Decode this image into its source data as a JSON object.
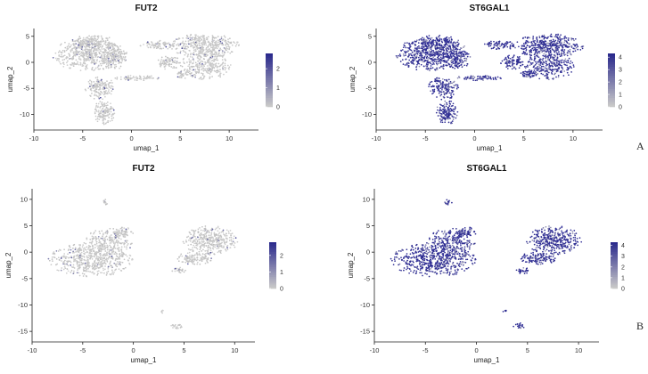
{
  "panel_labels": [
    "A",
    "B"
  ],
  "colors": {
    "low": "#c8c8c8",
    "high": "#2b2a8c",
    "axis": "#222222"
  },
  "chart_data": [
    {
      "id": "A-FUT2",
      "type": "scatter",
      "title": "FUT2",
      "xlabel": "umap_1",
      "ylabel": "umap_2",
      "xlim": [
        -10,
        13
      ],
      "ylim": [
        -13,
        6.5
      ],
      "xticks": [
        -10,
        -5,
        0,
        5,
        10
      ],
      "yticks": [
        -10,
        -5,
        0,
        5
      ],
      "legend": {
        "placement": "right",
        "ticks": [
          0,
          1,
          2
        ],
        "max": 2.8
      },
      "expression_level": "low",
      "clusters": [
        {
          "cx": -4.5,
          "cy": 1.5,
          "rx": 3.6,
          "ry": 3.2,
          "n": 520
        },
        {
          "cx": -4.0,
          "cy": 3.8,
          "rx": 2.5,
          "ry": 1.4,
          "n": 160
        },
        {
          "cx": -1.8,
          "cy": 1.0,
          "rx": 1.4,
          "ry": 2.6,
          "n": 160
        },
        {
          "cx": -3.2,
          "cy": -5.0,
          "rx": 1.6,
          "ry": 2.2,
          "n": 160
        },
        {
          "cx": -2.8,
          "cy": -9.6,
          "rx": 1.1,
          "ry": 2.4,
          "n": 150
        },
        {
          "cx": 0.5,
          "cy": -3.0,
          "rx": 2.4,
          "ry": 0.5,
          "n": 70
        },
        {
          "cx": 2.6,
          "cy": 3.3,
          "rx": 1.8,
          "ry": 0.9,
          "n": 80
        },
        {
          "cx": 7.5,
          "cy": 3.2,
          "rx": 3.6,
          "ry": 2.3,
          "n": 420
        },
        {
          "cx": 7.6,
          "cy": -0.6,
          "rx": 2.6,
          "ry": 2.8,
          "n": 280
        },
        {
          "cx": 3.8,
          "cy": 0.0,
          "rx": 1.2,
          "ry": 1.4,
          "n": 90
        },
        {
          "cx": 5.4,
          "cy": -2.2,
          "rx": 0.9,
          "ry": 0.9,
          "n": 50
        }
      ]
    },
    {
      "id": "A-ST6GAL1",
      "type": "scatter",
      "title": "ST6GAL1",
      "xlabel": "umap_1",
      "ylabel": "umap_2",
      "xlim": [
        -10,
        13
      ],
      "ylim": [
        -13,
        6.5
      ],
      "xticks": [
        -10,
        -5,
        0,
        5,
        10
      ],
      "yticks": [
        -10,
        -5,
        0,
        5
      ],
      "legend": {
        "placement": "right",
        "ticks": [
          0,
          1,
          2,
          3,
          4
        ],
        "max": 4.3
      },
      "expression_level": "high",
      "clusters": [
        {
          "cx": -4.5,
          "cy": 1.5,
          "rx": 3.6,
          "ry": 3.2,
          "n": 520
        },
        {
          "cx": -4.0,
          "cy": 3.8,
          "rx": 2.5,
          "ry": 1.4,
          "n": 160
        },
        {
          "cx": -1.8,
          "cy": 1.0,
          "rx": 1.4,
          "ry": 2.6,
          "n": 160
        },
        {
          "cx": -3.2,
          "cy": -5.0,
          "rx": 1.6,
          "ry": 2.2,
          "n": 160
        },
        {
          "cx": -2.8,
          "cy": -9.6,
          "rx": 1.1,
          "ry": 2.4,
          "n": 150
        },
        {
          "cx": 0.5,
          "cy": -3.0,
          "rx": 2.4,
          "ry": 0.5,
          "n": 70
        },
        {
          "cx": 2.6,
          "cy": 3.3,
          "rx": 1.8,
          "ry": 0.9,
          "n": 80
        },
        {
          "cx": 7.5,
          "cy": 3.2,
          "rx": 3.6,
          "ry": 2.3,
          "n": 420
        },
        {
          "cx": 7.6,
          "cy": -0.6,
          "rx": 2.6,
          "ry": 2.8,
          "n": 280
        },
        {
          "cx": 3.8,
          "cy": 0.0,
          "rx": 1.2,
          "ry": 1.4,
          "n": 90
        },
        {
          "cx": 5.4,
          "cy": -2.2,
          "rx": 0.9,
          "ry": 0.9,
          "n": 50
        }
      ]
    },
    {
      "id": "B-FUT2",
      "type": "scatter",
      "title": "FUT2",
      "xlabel": "umap_1",
      "ylabel": "umap_2",
      "xlim": [
        -10,
        12
      ],
      "ylim": [
        -17,
        12
      ],
      "xticks": [
        -10,
        -5,
        0,
        5,
        10
      ],
      "yticks": [
        -15,
        -10,
        -5,
        0,
        5,
        10
      ],
      "legend": {
        "placement": "right",
        "ticks": [
          0,
          1,
          2
        ],
        "max": 2.8
      },
      "expression_level": "low",
      "clusters": [
        {
          "cx": -4.2,
          "cy": -1.5,
          "rx": 4.2,
          "ry": 3.2,
          "n": 560
        },
        {
          "cx": -2.5,
          "cy": 1.8,
          "rx": 2.4,
          "ry": 2.8,
          "n": 260
        },
        {
          "cx": -1.0,
          "cy": 3.8,
          "rx": 1.0,
          "ry": 1.0,
          "n": 60
        },
        {
          "cx": -2.8,
          "cy": 9.5,
          "rx": 0.4,
          "ry": 0.6,
          "n": 14
        },
        {
          "cx": 7.6,
          "cy": 2.2,
          "rx": 2.8,
          "ry": 2.8,
          "n": 380
        },
        {
          "cx": 6.0,
          "cy": -1.2,
          "rx": 1.8,
          "ry": 1.2,
          "n": 120
        },
        {
          "cx": 4.5,
          "cy": -3.5,
          "rx": 0.7,
          "ry": 0.6,
          "n": 30
        },
        {
          "cx": 4.2,
          "cy": -14.0,
          "rx": 0.6,
          "ry": 0.6,
          "n": 22
        },
        {
          "cx": 2.8,
          "cy": -11.2,
          "rx": 0.2,
          "ry": 0.4,
          "n": 6
        }
      ]
    },
    {
      "id": "B-ST6GAL1",
      "type": "scatter",
      "title": "ST6GAL1",
      "xlabel": "umap_1",
      "ylabel": "umap_2",
      "xlim": [
        -10,
        12
      ],
      "ylim": [
        -17,
        12
      ],
      "xticks": [
        -10,
        -5,
        0,
        5,
        10
      ],
      "yticks": [
        -15,
        -10,
        -5,
        0,
        5,
        10
      ],
      "legend": {
        "placement": "right",
        "ticks": [
          0,
          1,
          2,
          3,
          4
        ],
        "max": 4.3
      },
      "expression_level": "high",
      "clusters": [
        {
          "cx": -4.2,
          "cy": -1.5,
          "rx": 4.2,
          "ry": 3.2,
          "n": 560
        },
        {
          "cx": -2.5,
          "cy": 1.8,
          "rx": 2.4,
          "ry": 2.8,
          "n": 260
        },
        {
          "cx": -1.0,
          "cy": 3.8,
          "rx": 1.0,
          "ry": 1.0,
          "n": 60
        },
        {
          "cx": -2.8,
          "cy": 9.5,
          "rx": 0.4,
          "ry": 0.6,
          "n": 14
        },
        {
          "cx": 7.6,
          "cy": 2.2,
          "rx": 2.8,
          "ry": 2.8,
          "n": 380
        },
        {
          "cx": 6.0,
          "cy": -1.2,
          "rx": 1.8,
          "ry": 1.2,
          "n": 120
        },
        {
          "cx": 4.5,
          "cy": -3.5,
          "rx": 0.7,
          "ry": 0.6,
          "n": 30
        },
        {
          "cx": 4.2,
          "cy": -14.0,
          "rx": 0.6,
          "ry": 0.6,
          "n": 22
        },
        {
          "cx": 2.8,
          "cy": -11.2,
          "rx": 0.2,
          "ry": 0.4,
          "n": 6
        }
      ]
    }
  ]
}
